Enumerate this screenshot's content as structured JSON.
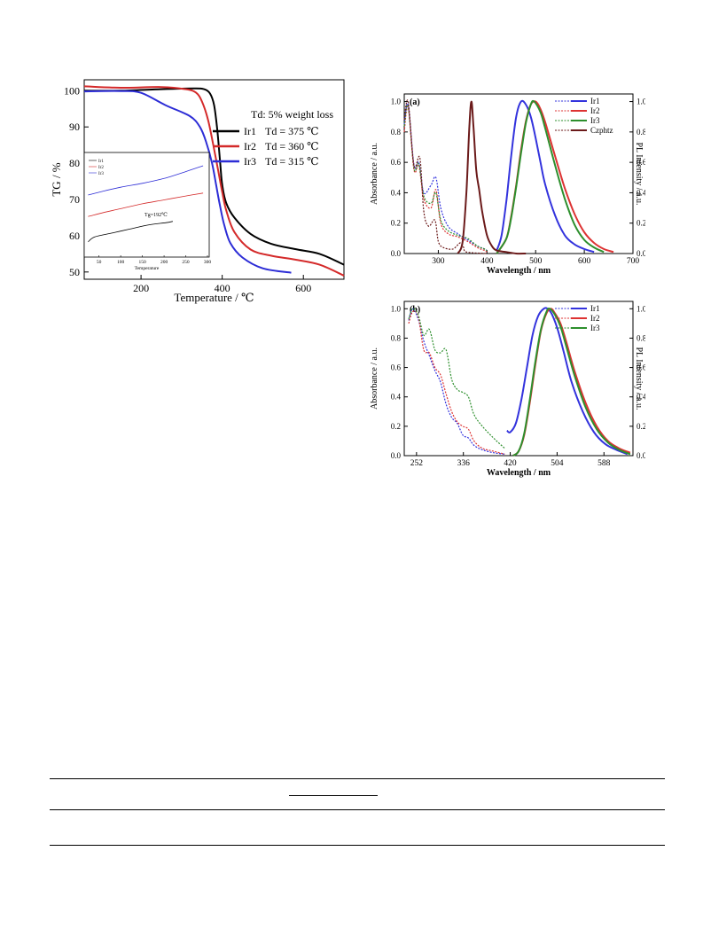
{
  "chart_data": [
    {
      "type": "line",
      "id": "tg",
      "xlabel": "Temperature / ℃",
      "ylabel": "TG / %",
      "xlim": [
        60,
        700
      ],
      "ylim": [
        48,
        103
      ],
      "xticks": [
        200,
        400,
        600
      ],
      "yticks": [
        50,
        60,
        70,
        80,
        90,
        100
      ],
      "legend_title": "Td: 5% weight loss",
      "legend_placement": "top-right",
      "series": [
        {
          "name": "Ir1",
          "label": "Td = 375 ℃",
          "color": "#000000",
          "x": [
            60,
            150,
            250,
            330,
            355,
            370,
            380,
            388,
            395,
            400,
            410,
            430,
            470,
            520,
            580,
            640,
            700
          ],
          "y": [
            100,
            100,
            100.4,
            100.6,
            100.4,
            99.2,
            96,
            89,
            80,
            74,
            69,
            65,
            60.5,
            57.8,
            56.3,
            55,
            52
          ]
        },
        {
          "name": "Ir2",
          "label": "Td = 360 ℃",
          "color": "#d42a2a",
          "x": [
            60,
            150,
            250,
            310,
            335,
            350,
            365,
            378,
            390,
            400,
            410,
            430,
            470,
            520,
            580,
            640,
            700
          ],
          "y": [
            101.2,
            100.8,
            101,
            100.4,
            99.5,
            97,
            92,
            85,
            78,
            72,
            67,
            61,
            56.2,
            54.5,
            53.4,
            52,
            49
          ]
        },
        {
          "name": "Ir3",
          "label": "Td = 315 ℃",
          "color": "#2d2dd6",
          "x": [
            60,
            150,
            200,
            260,
            320,
            345,
            360,
            375,
            385,
            395,
            405,
            420,
            450,
            500,
            570
          ],
          "y": [
            99.8,
            99.9,
            99.4,
            96,
            93,
            90,
            86,
            80,
            74,
            68,
            63,
            58,
            54,
            51,
            49.8
          ]
        }
      ],
      "inset": {
        "xlabel": "Temperature",
        "xlim": [
          20,
          300
        ],
        "xticks": [
          50,
          100,
          150,
          200,
          250,
          300
        ],
        "annotation": "Tg=192℃",
        "legend": [
          "Ir1",
          "Ir2",
          "Ir3"
        ],
        "series": [
          {
            "name": "Ir1",
            "color": "#000000",
            "x": [
              25,
              40,
              80,
              120,
              160,
              192,
              210,
              220
            ],
            "y": [
              0.12,
              0.17,
              0.21,
              0.25,
              0.29,
              0.31,
              0.32,
              0.33
            ]
          },
          {
            "name": "Ir2",
            "color": "#d42a2a",
            "x": [
              25,
              60,
              100,
              150,
              200,
              250,
              290
            ],
            "y": [
              0.38,
              0.42,
              0.46,
              0.51,
              0.55,
              0.59,
              0.62
            ]
          },
          {
            "name": "Ir3",
            "color": "#2d2dd6",
            "x": [
              25,
              60,
              100,
              150,
              200,
              250,
              290
            ],
            "y": [
              0.6,
              0.64,
              0.68,
              0.72,
              0.77,
              0.84,
              0.9
            ]
          }
        ]
      }
    },
    {
      "type": "line",
      "id": "a",
      "panel_label": "(a)",
      "xlabel": "Wavelength / nm",
      "ylabel": "Absorbance / a.u.",
      "ylabel_right": "PL Intensity / a.u.",
      "xlim": [
        230,
        700
      ],
      "ylim": [
        0,
        1.05
      ],
      "xticks": [
        300,
        400,
        500,
        600,
        700
      ],
      "yticks": [
        0.0,
        0.2,
        0.4,
        0.6,
        0.8,
        1.0
      ],
      "legend": [
        "Ir1",
        "Ir2",
        "Ir3",
        "Czphtz"
      ],
      "legend_placement": "top-right",
      "absorption": [
        {
          "name": "Ir1",
          "color": "#3333dd",
          "x": [
            230,
            238,
            250,
            260,
            270,
            285,
            295,
            305,
            320,
            340,
            360,
            380,
            395,
            400
          ],
          "y": [
            0.85,
            0.98,
            0.58,
            0.6,
            0.4,
            0.45,
            0.5,
            0.3,
            0.18,
            0.13,
            0.09,
            0.05,
            0.03,
            0.02
          ]
        },
        {
          "name": "Ir2",
          "color": "#dd3333",
          "x": [
            230,
            238,
            250,
            260,
            270,
            285,
            295,
            305,
            320,
            340,
            360,
            380,
            395,
            400
          ],
          "y": [
            0.8,
            0.96,
            0.55,
            0.58,
            0.36,
            0.3,
            0.42,
            0.2,
            0.13,
            0.11,
            0.08,
            0.04,
            0.02,
            0.01
          ]
        },
        {
          "name": "Ir3",
          "color": "#2d8f2d",
          "x": [
            230,
            238,
            250,
            260,
            270,
            285,
            295,
            305,
            320,
            340,
            360,
            380,
            395,
            400
          ],
          "y": [
            0.84,
            0.97,
            0.56,
            0.59,
            0.38,
            0.33,
            0.4,
            0.22,
            0.15,
            0.12,
            0.1,
            0.05,
            0.03,
            0.02
          ]
        },
        {
          "name": "Czphtz",
          "color": "#6b1a1a",
          "x": [
            230,
            238,
            250,
            262,
            270,
            280,
            293,
            300,
            310,
            330,
            345,
            352,
            358,
            400
          ],
          "y": [
            0.88,
            1.0,
            0.58,
            0.63,
            0.28,
            0.18,
            0.22,
            0.08,
            0.04,
            0.03,
            0.07,
            0.04,
            0.01,
            0.0
          ]
        }
      ],
      "emission": [
        {
          "name": "Ir1",
          "color": "#3333dd",
          "x": [
            420,
            430,
            440,
            450,
            460,
            470,
            480,
            490,
            500,
            510,
            520,
            540,
            560,
            580,
            600,
            620
          ],
          "y": [
            0.02,
            0.12,
            0.35,
            0.65,
            0.9,
            1.0,
            0.98,
            0.9,
            0.76,
            0.6,
            0.45,
            0.25,
            0.12,
            0.06,
            0.03,
            0.01
          ]
        },
        {
          "name": "Ir2",
          "color": "#dd3333",
          "x": [
            420,
            440,
            450,
            460,
            470,
            480,
            490,
            500,
            510,
            520,
            540,
            560,
            580,
            600,
            620,
            640,
            660
          ],
          "y": [
            0.0,
            0.1,
            0.25,
            0.45,
            0.68,
            0.87,
            0.98,
            1.0,
            0.95,
            0.86,
            0.64,
            0.43,
            0.26,
            0.14,
            0.07,
            0.03,
            0.01
          ]
        },
        {
          "name": "Ir3",
          "color": "#2d8f2d",
          "x": [
            420,
            440,
            450,
            460,
            470,
            480,
            490,
            497,
            510,
            520,
            540,
            560,
            580,
            600,
            620,
            640
          ],
          "y": [
            0.0,
            0.1,
            0.24,
            0.44,
            0.66,
            0.86,
            0.98,
            1.0,
            0.93,
            0.82,
            0.58,
            0.36,
            0.19,
            0.09,
            0.04,
            0.01
          ]
        },
        {
          "name": "Czphtz",
          "color": "#6b1a1a",
          "x": [
            340,
            350,
            358,
            364,
            368,
            372,
            378,
            384,
            390,
            400,
            410,
            420,
            440,
            460,
            480
          ],
          "y": [
            0.0,
            0.08,
            0.42,
            0.85,
            1.0,
            0.85,
            0.55,
            0.42,
            0.28,
            0.12,
            0.05,
            0.02,
            0.01,
            0.0,
            0.0
          ]
        }
      ]
    },
    {
      "type": "line",
      "id": "b",
      "panel_label": "(b)",
      "xlabel": "Wavelength / nm",
      "ylabel": "Absorbance / a.u.",
      "ylabel_right": "PL Intensity / a.u.",
      "xlim": [
        230,
        640
      ],
      "ylim": [
        0,
        1.05
      ],
      "xticks": [
        252,
        336,
        420,
        504,
        588
      ],
      "yticks": [
        0.0,
        0.2,
        0.4,
        0.6,
        0.8,
        1.0
      ],
      "legend": [
        "Ir1",
        "Ir2",
        "Ir3"
      ],
      "legend_placement": "top-right",
      "absorption": [
        {
          "name": "Ir1",
          "color": "#3333dd",
          "x": [
            238,
            245,
            255,
            265,
            275,
            285,
            295,
            305,
            315,
            325,
            335,
            345,
            355,
            370,
            390,
            410
          ],
          "y": [
            0.92,
            1.0,
            0.93,
            0.78,
            0.68,
            0.58,
            0.5,
            0.35,
            0.26,
            0.22,
            0.14,
            0.12,
            0.07,
            0.04,
            0.02,
            0.01
          ]
        },
        {
          "name": "Ir2",
          "color": "#dd3333",
          "x": [
            238,
            245,
            255,
            265,
            275,
            285,
            295,
            305,
            315,
            325,
            335,
            345,
            355,
            370,
            390,
            410
          ],
          "y": [
            0.9,
            0.98,
            0.95,
            0.72,
            0.7,
            0.6,
            0.55,
            0.42,
            0.3,
            0.23,
            0.2,
            0.18,
            0.1,
            0.05,
            0.03,
            0.01
          ]
        },
        {
          "name": "Ir3",
          "color": "#2d8f2d",
          "x": [
            238,
            245,
            255,
            265,
            275,
            285,
            295,
            305,
            315,
            325,
            335,
            345,
            355,
            370,
            390,
            410
          ],
          "y": [
            0.93,
            1.0,
            0.96,
            0.82,
            0.86,
            0.72,
            0.7,
            0.72,
            0.52,
            0.45,
            0.43,
            0.4,
            0.28,
            0.2,
            0.12,
            0.05
          ]
        }
      ],
      "emission": [
        {
          "name": "Ir1",
          "color": "#3333dd",
          "x": [
            414,
            420,
            430,
            440,
            450,
            460,
            470,
            480,
            487,
            495,
            505,
            515,
            530,
            550,
            570,
            590,
            610,
            630
          ],
          "y": [
            0.17,
            0.16,
            0.22,
            0.38,
            0.6,
            0.82,
            0.95,
            1.0,
            1.0,
            0.96,
            0.86,
            0.72,
            0.5,
            0.3,
            0.16,
            0.08,
            0.04,
            0.01
          ]
        },
        {
          "name": "Ir2",
          "color": "#dd3333",
          "x": [
            425,
            435,
            445,
            455,
            465,
            475,
            485,
            493,
            500,
            510,
            520,
            535,
            555,
            575,
            595,
            615,
            635
          ],
          "y": [
            0.0,
            0.03,
            0.14,
            0.36,
            0.62,
            0.85,
            0.97,
            1.0,
            0.97,
            0.9,
            0.78,
            0.58,
            0.36,
            0.2,
            0.1,
            0.05,
            0.02
          ]
        },
        {
          "name": "Ir3",
          "color": "#2d8f2d",
          "x": [
            425,
            435,
            445,
            455,
            465,
            475,
            485,
            491,
            500,
            510,
            520,
            535,
            555,
            575,
            595,
            615,
            635
          ],
          "y": [
            0.0,
            0.03,
            0.15,
            0.38,
            0.64,
            0.86,
            0.98,
            1.0,
            0.96,
            0.88,
            0.75,
            0.55,
            0.33,
            0.18,
            0.09,
            0.04,
            0.01
          ]
        }
      ]
    }
  ]
}
